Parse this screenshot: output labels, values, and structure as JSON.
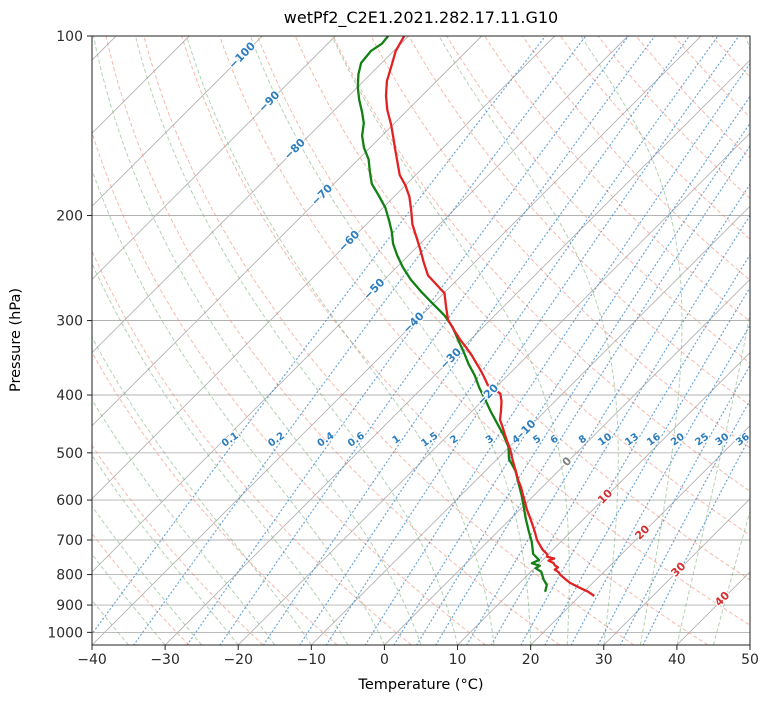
{
  "title": "wetPf2_C2E1.2021.282.17.11.G10",
  "axes": {
    "xlabel": "Temperature (°C)",
    "ylabel": "Pressure (hPa)",
    "x_ticks": [
      -40,
      -30,
      -20,
      -10,
      0,
      10,
      20,
      30,
      40,
      50
    ],
    "y_ticks": [
      100,
      200,
      300,
      400,
      500,
      600,
      700,
      800,
      900,
      1000
    ]
  },
  "colors": {
    "temperature": "#e22222",
    "dewpoint": "#128012",
    "isotherm": "#b3b3b3",
    "grid": "#b3b3b3",
    "dry_adiabat": "#f08068",
    "moist_adiabat": "#67a567",
    "mixing_ratio": "#3a87c8",
    "label_negative": "#2d7dbf",
    "label_zero": "#7f7f7f",
    "label_positive": "#d62f2f",
    "axis_text": "#2b2b2b",
    "spine": "#222222"
  },
  "chart_data": {
    "type": "line",
    "subtype": "skew-t-log-p",
    "title": "wetPf2_C2E1.2021.282.17.11.G10",
    "xlabel": "Temperature (°C)",
    "ylabel": "Pressure (hPa)",
    "xlim": [
      -40,
      50
    ],
    "pressure_top": 100,
    "pressure_bottom": 1050,
    "skew_deg": 45,
    "series": [
      {
        "name": "temperature",
        "units": {
          "pressure": "hPa",
          "value": "degC"
        },
        "points": [
          [
            100,
            -80.6
          ],
          [
            106,
            -79.7
          ],
          [
            112,
            -78.3
          ],
          [
            119,
            -76.8
          ],
          [
            126,
            -74.9
          ],
          [
            133,
            -72.8
          ],
          [
            141,
            -70.2
          ],
          [
            148,
            -68.2
          ],
          [
            155,
            -66.3
          ],
          [
            163,
            -64.2
          ],
          [
            171,
            -62.2
          ],
          [
            178,
            -60.0
          ],
          [
            186,
            -57.9
          ],
          [
            196,
            -55.8
          ],
          [
            207,
            -53.7
          ],
          [
            217,
            -51.5
          ],
          [
            228,
            -49.2
          ],
          [
            240,
            -46.9
          ],
          [
            252,
            -44.6
          ],
          [
            261,
            -42.2
          ],
          [
            270,
            -39.9
          ],
          [
            284,
            -37.9
          ],
          [
            299,
            -35.8
          ],
          [
            311,
            -33.6
          ],
          [
            323,
            -31.4
          ],
          [
            333,
            -29.5
          ],
          [
            343,
            -27.7
          ],
          [
            353,
            -26.1
          ],
          [
            363,
            -24.5
          ],
          [
            374,
            -22.9
          ],
          [
            385,
            -21.4
          ],
          [
            391,
            -20.0
          ],
          [
            398,
            -18.5
          ],
          [
            410,
            -17.3
          ],
          [
            425,
            -16.1
          ],
          [
            440,
            -15.0
          ],
          [
            453,
            -13.6
          ],
          [
            467,
            -12.2
          ],
          [
            480,
            -10.9
          ],
          [
            494,
            -9.5
          ],
          [
            509,
            -8.2
          ],
          [
            524,
            -6.9
          ],
          [
            539,
            -5.6
          ],
          [
            555,
            -4.3
          ],
          [
            571,
            -2.9
          ],
          [
            588,
            -1.6
          ],
          [
            605,
            -0.3
          ],
          [
            623,
            1.0
          ],
          [
            641,
            2.4
          ],
          [
            660,
            3.8
          ],
          [
            680,
            5.2
          ],
          [
            700,
            6.5
          ],
          [
            714,
            7.6
          ],
          [
            728,
            8.7
          ],
          [
            740,
            9.9
          ],
          [
            747,
            10.2
          ],
          [
            752,
            11.4
          ],
          [
            758,
            10.9
          ],
          [
            765,
            11.9
          ],
          [
            772,
            12.4
          ],
          [
            778,
            13.1
          ],
          [
            785,
            13.0
          ],
          [
            793,
            13.9
          ],
          [
            800,
            14.4
          ],
          [
            813,
            15.6
          ],
          [
            826,
            16.9
          ],
          [
            842,
            18.9
          ],
          [
            855,
            20.6
          ],
          [
            869,
            22.0
          ]
        ]
      },
      {
        "name": "dewpoint",
        "units": {
          "pressure": "hPa",
          "value": "degC"
        },
        "points": [
          [
            100,
            -82.8
          ],
          [
            103,
            -82.6
          ],
          [
            106,
            -83.1
          ],
          [
            111,
            -82.8
          ],
          [
            116,
            -81.6
          ],
          [
            122,
            -79.9
          ],
          [
            128,
            -78.0
          ],
          [
            134,
            -76.0
          ],
          [
            140,
            -74.2
          ],
          [
            147,
            -72.7
          ],
          [
            154,
            -70.8
          ],
          [
            161,
            -68.6
          ],
          [
            169,
            -66.7
          ],
          [
            177,
            -64.8
          ],
          [
            185,
            -62.3
          ],
          [
            194,
            -59.7
          ],
          [
            204,
            -57.4
          ],
          [
            213,
            -55.5
          ],
          [
            223,
            -53.7
          ],
          [
            233,
            -51.6
          ],
          [
            244,
            -49.2
          ],
          [
            256,
            -46.4
          ],
          [
            268,
            -43.4
          ],
          [
            281,
            -40.1
          ],
          [
            294,
            -36.9
          ],
          [
            308,
            -34.1
          ],
          [
            323,
            -31.7
          ],
          [
            339,
            -29.2
          ],
          [
            355,
            -26.9
          ],
          [
            371,
            -24.5
          ],
          [
            389,
            -22.2
          ],
          [
            407,
            -19.8
          ],
          [
            427,
            -17.3
          ],
          [
            447,
            -14.8
          ],
          [
            467,
            -12.4
          ],
          [
            489,
            -10.1
          ],
          [
            512,
            -8.4
          ],
          [
            536,
            -5.9
          ],
          [
            562,
            -3.8
          ],
          [
            588,
            -1.8
          ],
          [
            615,
            0.1
          ],
          [
            644,
            2.0
          ],
          [
            674,
            4.0
          ],
          [
            706,
            6.1
          ],
          [
            739,
            7.9
          ],
          [
            756,
            9.5
          ],
          [
            766,
            9.0
          ],
          [
            773,
            10.4
          ],
          [
            781,
            10.2
          ],
          [
            791,
            11.4
          ],
          [
            815,
            12.8
          ],
          [
            833,
            14.0
          ],
          [
            855,
            14.7
          ]
        ]
      }
    ],
    "isotherm_labels": [
      {
        "t": -100,
        "p": 108
      },
      {
        "t": -90,
        "p": 129
      },
      {
        "t": -80,
        "p": 155
      },
      {
        "t": -70,
        "p": 185
      },
      {
        "t": -60,
        "p": 221
      },
      {
        "t": -50,
        "p": 266
      },
      {
        "t": -40,
        "p": 303
      },
      {
        "t": -30,
        "p": 348
      },
      {
        "t": -20,
        "p": 400
      },
      {
        "t": -10,
        "p": 459
      },
      {
        "t": 0,
        "p": 518
      },
      {
        "t": 10,
        "p": 593
      },
      {
        "t": 20,
        "p": 681
      },
      {
        "t": 30,
        "p": 786
      },
      {
        "t": 40,
        "p": 880
      }
    ],
    "background_lines": {
      "isotherms_c": {
        "start": -150,
        "end": 50,
        "step": 10
      },
      "dry_adiabats_k": {
        "start": 243,
        "end": 473,
        "step": 10
      },
      "moist_adiabats_start_c": {
        "start": -40,
        "end": 45,
        "step": 5
      },
      "mixing_ratio_g_kg": [
        0.1,
        0.2,
        0.4,
        0.6,
        1,
        1.5,
        2,
        3,
        4,
        5,
        6,
        8,
        10,
        13,
        16,
        20,
        25,
        30,
        36
      ],
      "mixing_ratio_label_pressure": 475
    },
    "grid": true,
    "legend": "none"
  }
}
